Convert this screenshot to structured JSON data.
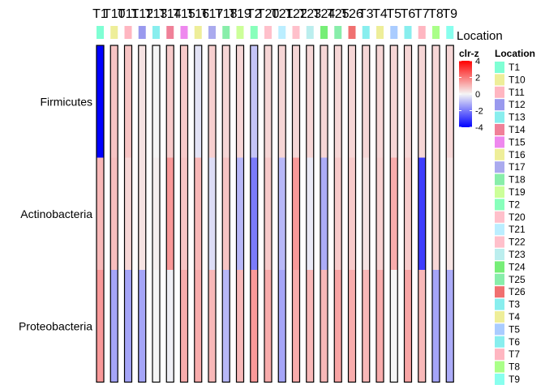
{
  "chart_data": {
    "type": "heatmap",
    "columns": [
      "T1",
      "T10",
      "T11",
      "T12",
      "T13",
      "T14",
      "T15",
      "T16",
      "T17",
      "T18",
      "T19",
      "T2",
      "T20",
      "T21",
      "T22",
      "T23",
      "T24",
      "T25",
      "T26",
      "T3",
      "T4",
      "T5",
      "T6",
      "T7",
      "T8",
      "T9"
    ],
    "rows": [
      "Firmicutes",
      "Actinobacteria",
      "Proteobacteria"
    ],
    "values": [
      [
        -4.0,
        0.8,
        0.8,
        0.3,
        0.0,
        0.7,
        0.7,
        -0.3,
        0.6,
        0.5,
        0.5,
        -0.8,
        0.5,
        0.5,
        0.5,
        0.5,
        0.5,
        0.5,
        0.5,
        0.5,
        0.5,
        0.5,
        0.5,
        0.5,
        0.5,
        0.5
      ],
      [
        1.0,
        0.9,
        0.5,
        0.3,
        0.1,
        1.5,
        0.8,
        1.0,
        -0.4,
        0.8,
        -1.0,
        -2.0,
        0.7,
        -1.0,
        1.5,
        -0.2,
        -1.2,
        0.7,
        0.7,
        0.3,
        0.6,
        1.2,
        0.7,
        -3.0,
        0.5,
        0.3
      ],
      [
        1.5,
        -1.3,
        -1.3,
        -1.3,
        0.0,
        -0.1,
        1.2,
        1.2,
        1.0,
        -1.0,
        1.0,
        1.5,
        1.2,
        -1.3,
        1.2,
        1.0,
        1.0,
        1.3,
        1.2,
        1.0,
        1.2,
        0.0,
        1.3,
        1.0,
        -1.3,
        -1.2
      ]
    ],
    "location_colors": [
      "#7fffd4",
      "#eeee99",
      "#ffb6c1",
      "#9999ee",
      "#88eeee",
      "#f08098",
      "#ee88ee",
      "#eeee99",
      "#aaaaee",
      "#88eeaa",
      "#ccff99",
      "#88ffbb",
      "#ffc0cb",
      "#bbeeff",
      "#ffc0cb",
      "#bbeeee",
      "#77ee77",
      "#88eeaa",
      "#f07070",
      "#88eeee",
      "#eeee99",
      "#aaccff",
      "#88eeee",
      "#ffb6c1",
      "#aaff88",
      "#88ffee"
    ],
    "color_scale": {
      "title": "clr-z",
      "breaks": [
        4,
        2,
        0,
        -2,
        -4
      ],
      "colors": {
        "low": "#0000ff",
        "mid": "#f5f5f5",
        "high": "#ff0000"
      }
    },
    "annotation_label": "Location",
    "legend": {
      "title": "Location",
      "entries": [
        "T1",
        "T10",
        "T11",
        "T12",
        "T13",
        "T14",
        "T15",
        "T16",
        "T17",
        "T18",
        "T19",
        "T2",
        "T20",
        "T21",
        "T22",
        "T23",
        "T24",
        "T25",
        "T26",
        "T3",
        "T4",
        "T5",
        "T6",
        "T7",
        "T8",
        "T9"
      ]
    }
  }
}
